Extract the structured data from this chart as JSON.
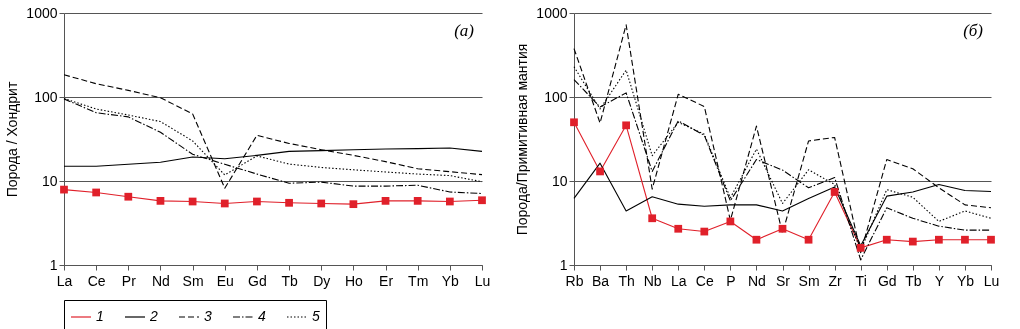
{
  "chart_data": [
    {
      "type": "line",
      "ylabel": "Порода / Хондрит",
      "categories": [
        "La",
        "Ce",
        "Pr",
        "Nd",
        "Sm",
        "Eu",
        "Gd",
        "Tb",
        "Dy",
        "Ho",
        "Er",
        "Tm",
        "Yb",
        "Lu"
      ],
      "log": "y",
      "ylim": [
        1,
        1000
      ],
      "yticks": [
        1,
        10,
        100,
        1000
      ],
      "grid": "y",
      "legend": "bottom",
      "annotations": [
        "(а)"
      ],
      "series": [
        {
          "name": "1",
          "color": "#e0202a",
          "marker": "square",
          "line_style": "solid",
          "values": [
            7.9,
            7.3,
            6.5,
            5.8,
            5.7,
            5.4,
            5.7,
            5.5,
            5.4,
            5.3,
            5.8,
            5.8,
            5.7,
            5.9
          ]
        },
        {
          "name": "2",
          "color": "#000000",
          "marker": "none",
          "line_style": "solid",
          "values": [
            15,
            15,
            15.8,
            16.7,
            19.3,
            18.4,
            20.2,
            22.5,
            23,
            23.6,
            24,
            24.3,
            24.7,
            22.5
          ]
        },
        {
          "name": "3",
          "color": "#000000",
          "marker": "none",
          "line_style": "dashed",
          "values": [
            184,
            144,
            120,
            98,
            63,
            8.2,
            35,
            28,
            23.6,
            20.2,
            17,
            14,
            12.9,
            11.9
          ]
        },
        {
          "name": "4",
          "color": "#000000",
          "marker": "none",
          "line_style": "dashdot",
          "values": [
            95,
            65,
            58,
            38,
            20.8,
            15.8,
            12.1,
            9.4,
            9.7,
            8.7,
            8.7,
            8.9,
            7.4,
            7.1
          ]
        },
        {
          "name": "5",
          "color": "#000000",
          "marker": "none",
          "line_style": "dotted",
          "values": [
            96,
            72,
            61,
            51,
            30,
            11.8,
            19.9,
            15.9,
            14.5,
            13.6,
            12.8,
            12.1,
            11.6,
            9.8
          ]
        }
      ]
    },
    {
      "type": "line",
      "ylabel": "Порода/Примитивная мантия",
      "categories": [
        "Rb",
        "Ba",
        "Th",
        "Nb",
        "La",
        "Ce",
        "P",
        "Nd",
        "Sr",
        "Sm",
        "Zr",
        "Ti",
        "Gd",
        "Tb",
        "Y",
        "Yb",
        "Lu"
      ],
      "log": "y",
      "ylim": [
        1,
        1000
      ],
      "yticks": [
        1,
        10,
        100,
        1000
      ],
      "grid": "y",
      "annotations": [
        "(б)"
      ],
      "series": [
        {
          "color": "#e0202a",
          "marker": "square",
          "line_style": "solid",
          "values": [
            50,
            13,
            46,
            3.6,
            2.7,
            2.5,
            3.3,
            2.0,
            2.7,
            2.0,
            7.4,
            1.6,
            2.0,
            1.9,
            2.0,
            2.0,
            2.0
          ]
        },
        {
          "color": "#000000",
          "marker": "none",
          "line_style": "solid",
          "values": [
            6.2,
            16.3,
            4.4,
            6.5,
            5.3,
            5.0,
            5.2,
            5.2,
            4.4,
            6.2,
            8.5,
            1.7,
            6.6,
            7.4,
            9.1,
            7.7,
            7.5
          ]
        },
        {
          "color": "#000000",
          "marker": "none",
          "line_style": "dashed",
          "values": [
            377,
            49,
            724,
            8.0,
            108,
            77,
            3.4,
            45,
            2.4,
            30,
            33,
            1.4,
            18,
            14,
            8.3,
            5.2,
            4.8
          ]
        },
        {
          "color": "#000000",
          "marker": "none",
          "line_style": "dashdot",
          "values": [
            161,
            76,
            112,
            13,
            52,
            35,
            5.8,
            18,
            13.5,
            8.3,
            11,
            1.15,
            4.8,
            3.6,
            2.9,
            2.6,
            2.6
          ]
        },
        {
          "color": "#000000",
          "marker": "none",
          "line_style": "dotted",
          "values": [
            229,
            72,
            209,
            20,
            50,
            36,
            6.3,
            24,
            5.4,
            13.6,
            9.1,
            1.5,
            7.9,
            6.4,
            3.3,
            4.4,
            3.6
          ]
        }
      ]
    }
  ]
}
